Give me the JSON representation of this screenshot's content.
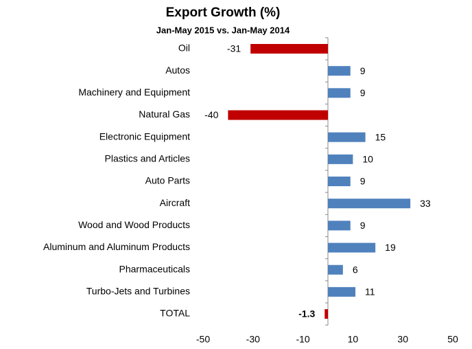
{
  "chart_data": {
    "type": "hbar",
    "title": "Export Growth (%)",
    "subtitle": "Jan-May 2015 vs. Jan-May 2014",
    "categories": [
      "Oil",
      "Autos",
      "Machinery and Equipment",
      "Natural Gas",
      "Electronic Equipment",
      "Plastics and Articles",
      "Auto Parts",
      "Aircraft",
      "Wood and Wood Products",
      "Aluminum and Aluminum Products",
      "Pharmaceuticals",
      "Turbo-Jets and Turbines",
      "TOTAL"
    ],
    "values": [
      -31,
      9,
      9,
      -40,
      15,
      10,
      9,
      33,
      9,
      19,
      6,
      11,
      -1.3
    ],
    "positive_color": "#4f81bd",
    "negative_color": "#c00000",
    "xlim": [
      -50,
      50
    ],
    "xticks": [
      -50,
      -30,
      -10,
      10,
      30,
      50
    ],
    "grid": false
  }
}
